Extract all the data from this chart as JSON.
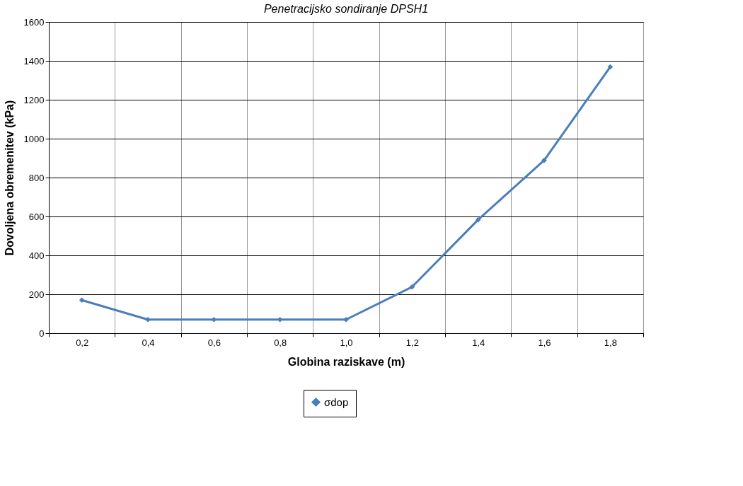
{
  "chart_data": {
    "type": "line",
    "title": "Penetracijsko sondiranje DPSH1",
    "xlabel": "Globina raziskave (m)",
    "ylabel": "Dovoljena obremenitev (kPa)",
    "categories": [
      "0,2",
      "0,4",
      "0,6",
      "0,8",
      "1,0",
      "1,2",
      "1,4",
      "1,6",
      "1,8"
    ],
    "series": [
      {
        "name": "σdop",
        "color": "#4a7ebb",
        "values": [
          170,
          70,
          70,
          70,
          70,
          238,
          583,
          889,
          1369
        ]
      }
    ],
    "ylim": [
      0,
      1600
    ],
    "yticks": [
      0,
      200,
      400,
      600,
      800,
      1000,
      1200,
      1400,
      1600
    ],
    "grid": true,
    "legend": "bottom",
    "marker": "diamond",
    "line_style": "solid"
  }
}
